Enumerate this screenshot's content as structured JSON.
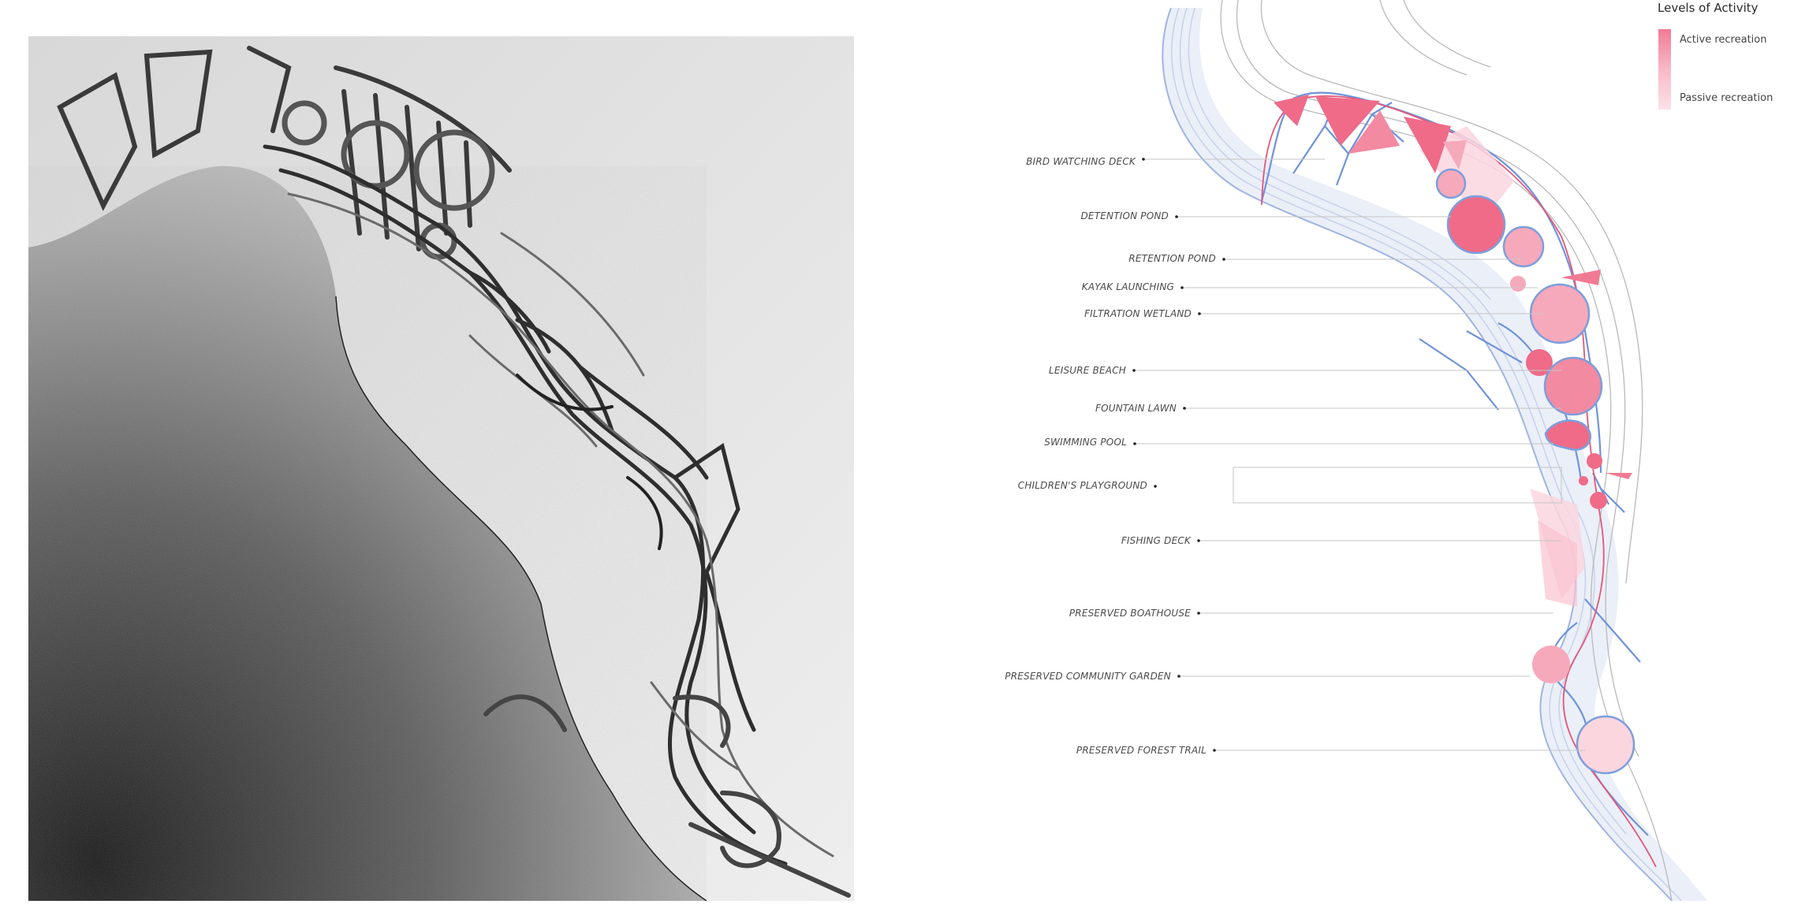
{
  "legend": {
    "title": "Levels of Activity",
    "active": "Active recreation",
    "passive": "Passive recreation",
    "active_color": "#f17a93",
    "passive_color": "#fbe1e8"
  },
  "labels": [
    {
      "name": "bird-watching-deck-label",
      "text": "BIRD WATCHING DECK"
    },
    {
      "name": "detention-pond-label",
      "text": "DETENTION POND"
    },
    {
      "name": "retention-pond-label",
      "text": "RETENTION POND"
    },
    {
      "name": "kayak-launching-label",
      "text": "KAYAK LAUNCHING"
    },
    {
      "name": "filtration-wetland-label",
      "text": "FILTRATION WETLAND"
    },
    {
      "name": "leisure-beach-label",
      "text": "LEISURE BEACH"
    },
    {
      "name": "fountain-lawn-label",
      "text": "FOUNTAIN  LAWN"
    },
    {
      "name": "swimming-pool-label",
      "text": "SWIMMING POOL"
    },
    {
      "name": "childrens-playground-label",
      "text": "CHILDREN'S PLAYGROUND"
    },
    {
      "name": "fishing-deck-label",
      "text": "FISHING DECK"
    },
    {
      "name": "preserved-boathouse-label",
      "text": "PRESERVED BOATHOUSE"
    },
    {
      "name": "preserved-community-garden-label",
      "text": "PRESERVED COMMUNITY GARDEN"
    },
    {
      "name": "preserved-forest-trail-label",
      "text": "PRESERVED FOREST TRAIL"
    }
  ],
  "colors": {
    "river_blue": "#7c9edb",
    "path_pink": "#e2577a",
    "active_pink": "#ef6b88",
    "mid_pink": "#f6a9bb",
    "light_pink": "#fbd6df"
  }
}
